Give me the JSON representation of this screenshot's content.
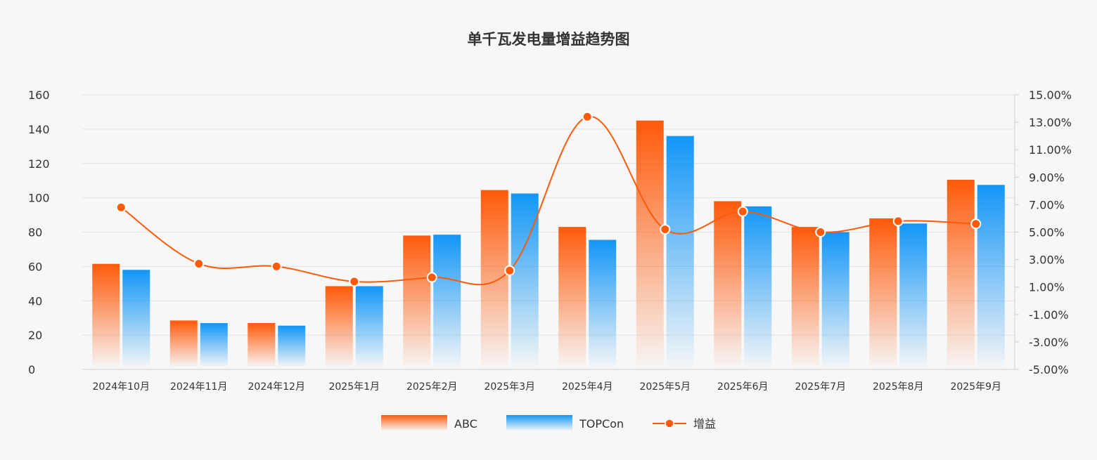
{
  "chart_data": {
    "type": "bar",
    "title": "单千瓦发电量增益趋势图",
    "categories": [
      "2024年10月",
      "2024年11月",
      "2024年12月",
      "2025年1月",
      "2025年2月",
      "2025年3月",
      "2025年4月",
      "2025年5月",
      "2025年6月",
      "2025年7月",
      "2025年8月",
      "2025年9月"
    ],
    "series": [
      {
        "name": "ABC",
        "type": "bar",
        "axis": "left",
        "color": "#ff5a0a",
        "values": [
          61.5,
          28.5,
          27,
          48.5,
          78,
          104.5,
          83,
          145,
          98,
          83,
          88,
          110.5
        ]
      },
      {
        "name": "TOPCon",
        "type": "bar",
        "axis": "left",
        "color": "#1296f7",
        "values": [
          58,
          27,
          25.5,
          48.5,
          78.5,
          102.5,
          75.5,
          136,
          95,
          80,
          85,
          107.5
        ]
      },
      {
        "name": "增益",
        "type": "line",
        "axis": "right",
        "color": "#ff5a0a",
        "values": [
          6.8,
          2.7,
          2.5,
          1.4,
          1.7,
          2.2,
          13.4,
          5.2,
          6.5,
          5.0,
          5.8,
          5.6
        ]
      }
    ],
    "y_left": {
      "min": 0,
      "max": 160,
      "ticks": [
        "0",
        "20",
        "40",
        "60",
        "80",
        "100",
        "120",
        "140",
        "160"
      ]
    },
    "y_right": {
      "min": -5,
      "max": 15,
      "ticks": [
        "-5.00%",
        "-3.00%",
        "-1.00%",
        "1.00%",
        "3.00%",
        "5.00%",
        "7.00%",
        "9.00%",
        "11.00%",
        "13.00%",
        "15.00%"
      ]
    },
    "grid": true,
    "legend": "bottom-center"
  }
}
